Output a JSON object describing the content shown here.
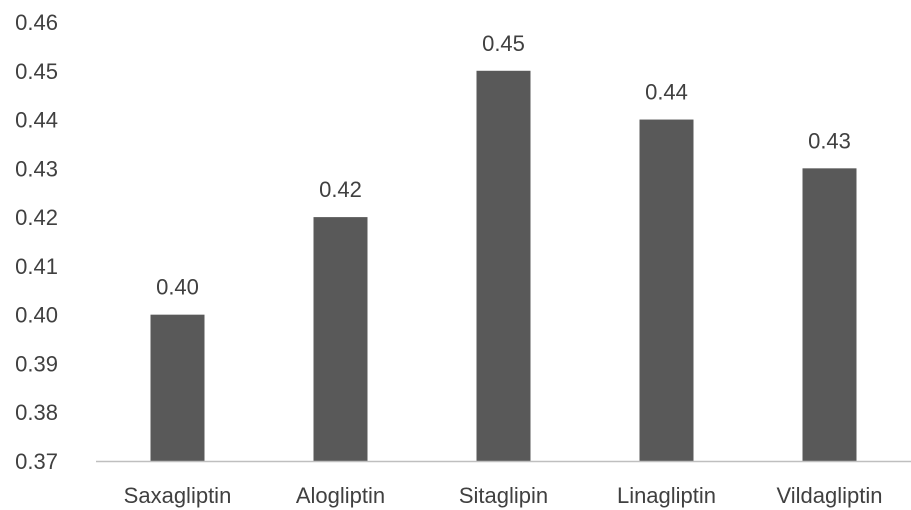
{
  "chart_data": {
    "type": "bar",
    "categories": [
      "Saxagliptin",
      "Alogliptin",
      "Sitaglipin",
      "Linagliptin",
      "Vildagliptin"
    ],
    "values": [
      0.4,
      0.42,
      0.45,
      0.44,
      0.43
    ],
    "data_labels": [
      "0.40",
      "0.42",
      "0.45",
      "0.44",
      "0.43"
    ],
    "yticks": [
      "0.37",
      "0.38",
      "0.39",
      "0.40",
      "0.41",
      "0.42",
      "0.43",
      "0.44",
      "0.45",
      "0.46"
    ],
    "ylim": [
      0.37,
      0.46
    ],
    "title": "",
    "xlabel": "",
    "ylabel": "",
    "grid": false,
    "bar_color": "#595959",
    "axis_color": "#bfbfbf"
  }
}
